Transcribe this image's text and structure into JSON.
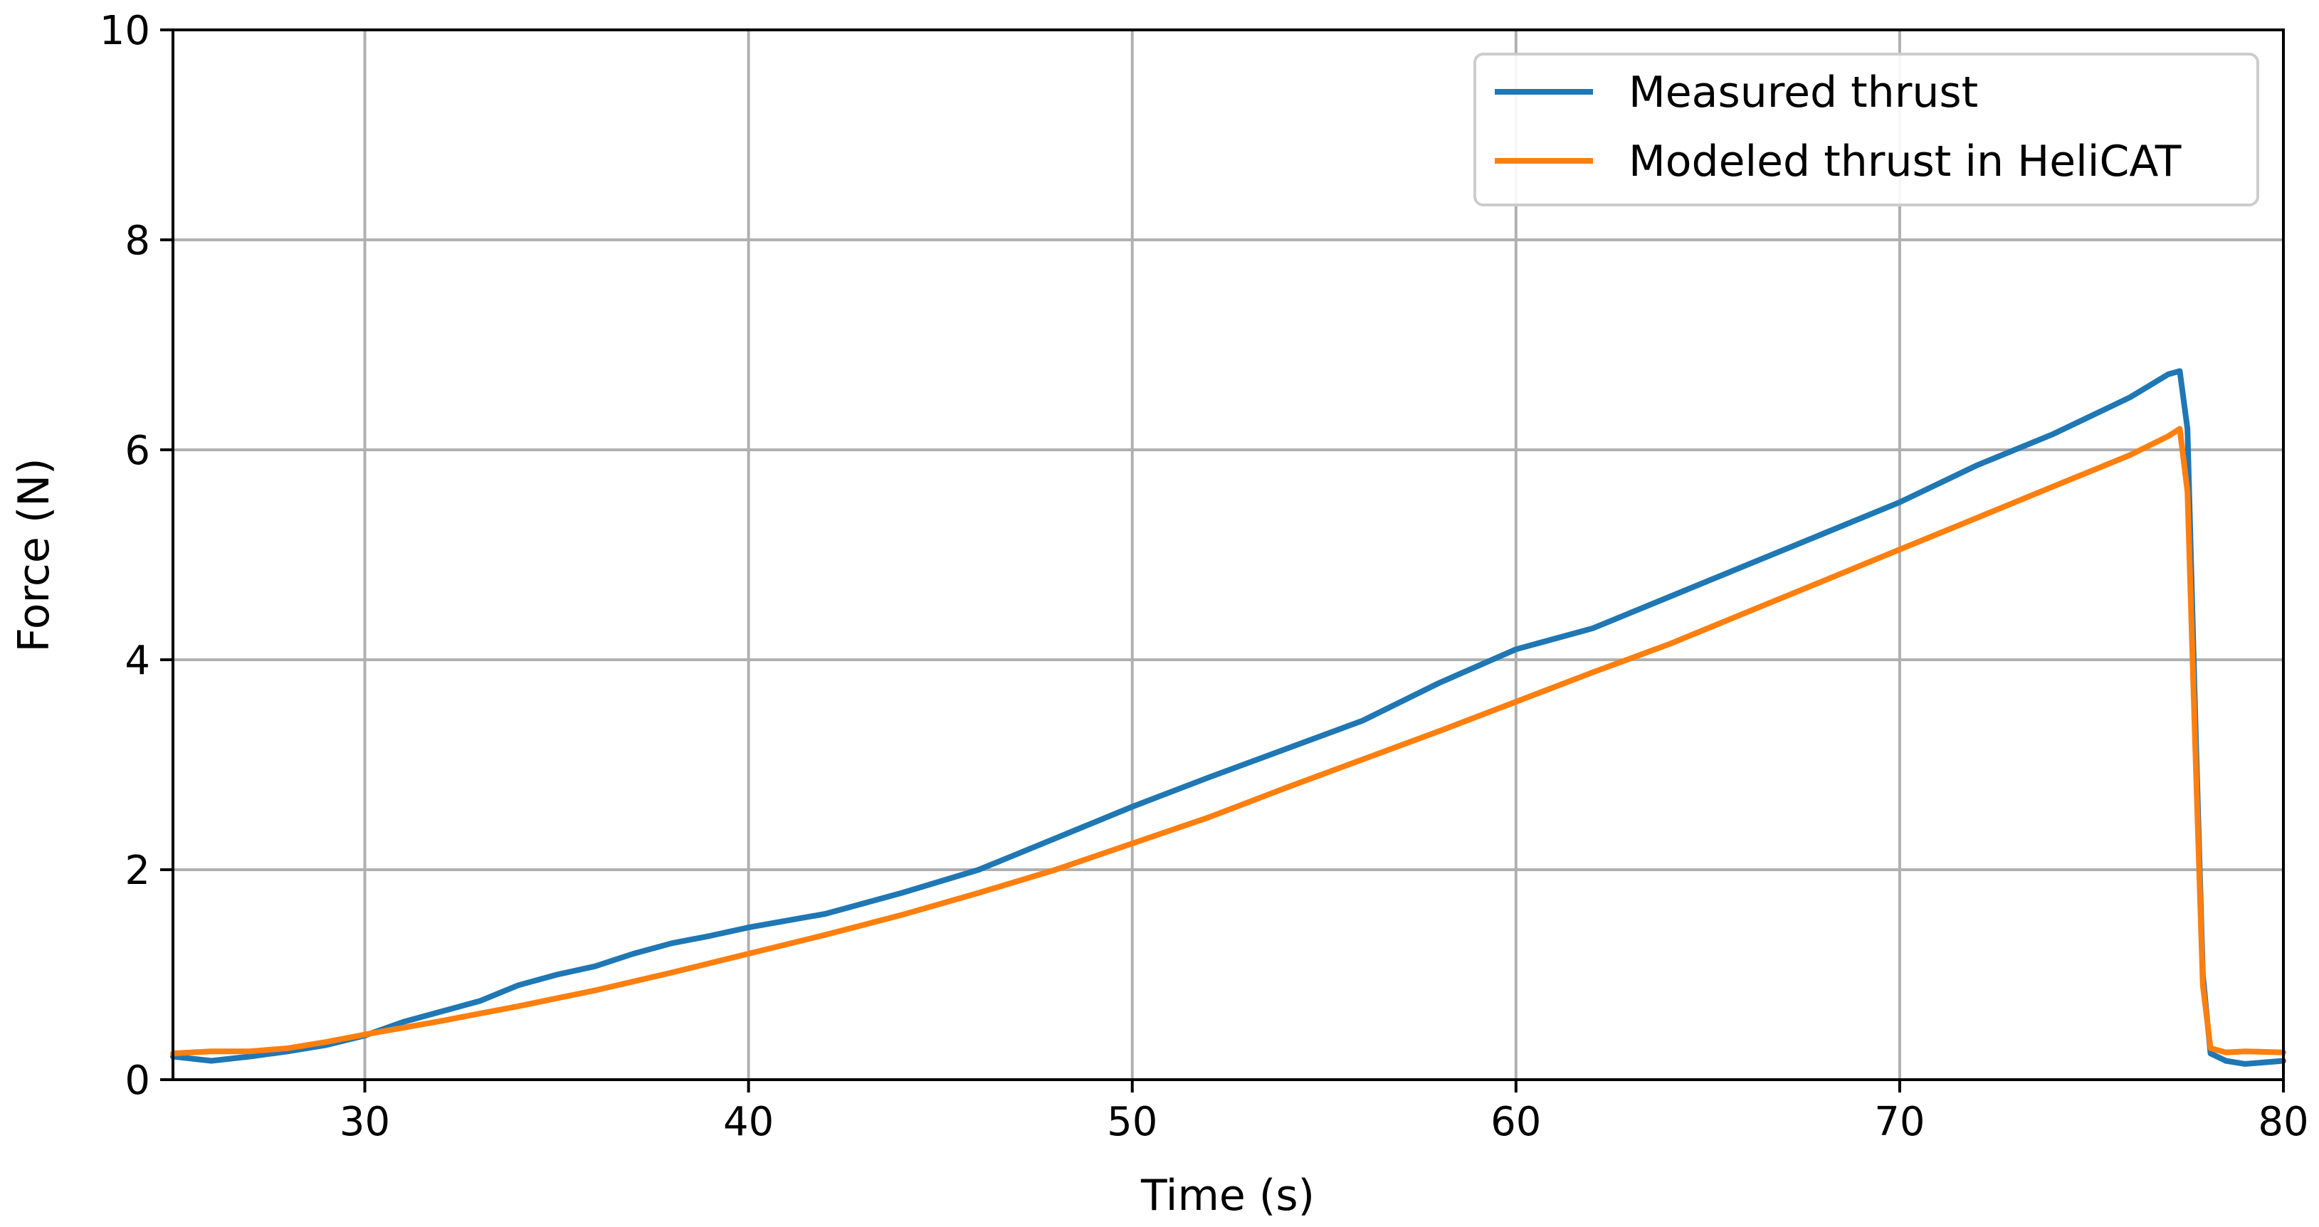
{
  "chart_data": {
    "type": "line",
    "title": "",
    "xlabel": "Time (s)",
    "ylabel": "Force (N)",
    "xlim": [
      25,
      80
    ],
    "ylim": [
      0,
      10
    ],
    "xticks": [
      30,
      40,
      50,
      60,
      70,
      80
    ],
    "xtick_labels": [
      "30",
      "40",
      "50",
      "60",
      "70",
      "80"
    ],
    "yticks": [
      0,
      2,
      4,
      6,
      8,
      10
    ],
    "ytick_labels": [
      "0",
      "2",
      "4",
      "6",
      "8",
      "10"
    ],
    "grid": true,
    "legend_position": "top-right",
    "series": [
      {
        "name": "Measured thrust",
        "color": "#1f77b4",
        "x": [
          25,
          26,
          27,
          28,
          29,
          30,
          31,
          32,
          33,
          34,
          35,
          36,
          37,
          38,
          39,
          40,
          42,
          44,
          46,
          48,
          50,
          52,
          54,
          56,
          58,
          60,
          62,
          64,
          66,
          68,
          70,
          72,
          74,
          76,
          77,
          77.3,
          77.5,
          77.7,
          77.9,
          78.1,
          78.5,
          79,
          80
        ],
        "y": [
          0.22,
          0.18,
          0.22,
          0.27,
          0.33,
          0.42,
          0.55,
          0.65,
          0.75,
          0.9,
          1.0,
          1.08,
          1.2,
          1.3,
          1.37,
          1.45,
          1.58,
          1.78,
          2.0,
          2.3,
          2.6,
          2.88,
          3.15,
          3.42,
          3.78,
          4.1,
          4.3,
          4.6,
          4.9,
          5.2,
          5.5,
          5.85,
          6.15,
          6.5,
          6.72,
          6.75,
          6.2,
          3.5,
          1.0,
          0.25,
          0.18,
          0.15,
          0.18
        ]
      },
      {
        "name": "Modeled thrust in HeliCAT",
        "color": "#ff7f0e",
        "x": [
          25,
          26,
          27,
          28,
          29,
          30,
          32,
          34,
          36,
          38,
          40,
          42,
          44,
          46,
          48,
          50,
          52,
          54,
          56,
          58,
          60,
          62,
          64,
          66,
          68,
          70,
          72,
          74,
          76,
          77,
          77.3,
          77.5,
          77.7,
          77.9,
          78.1,
          78.5,
          79,
          80
        ],
        "y": [
          0.25,
          0.27,
          0.27,
          0.3,
          0.36,
          0.43,
          0.56,
          0.7,
          0.85,
          1.02,
          1.2,
          1.38,
          1.57,
          1.78,
          2.0,
          2.25,
          2.5,
          2.78,
          3.05,
          3.32,
          3.6,
          3.88,
          4.15,
          4.45,
          4.75,
          5.05,
          5.35,
          5.65,
          5.95,
          6.13,
          6.2,
          5.6,
          3.2,
          0.9,
          0.3,
          0.26,
          0.27,
          0.26
        ]
      }
    ]
  }
}
